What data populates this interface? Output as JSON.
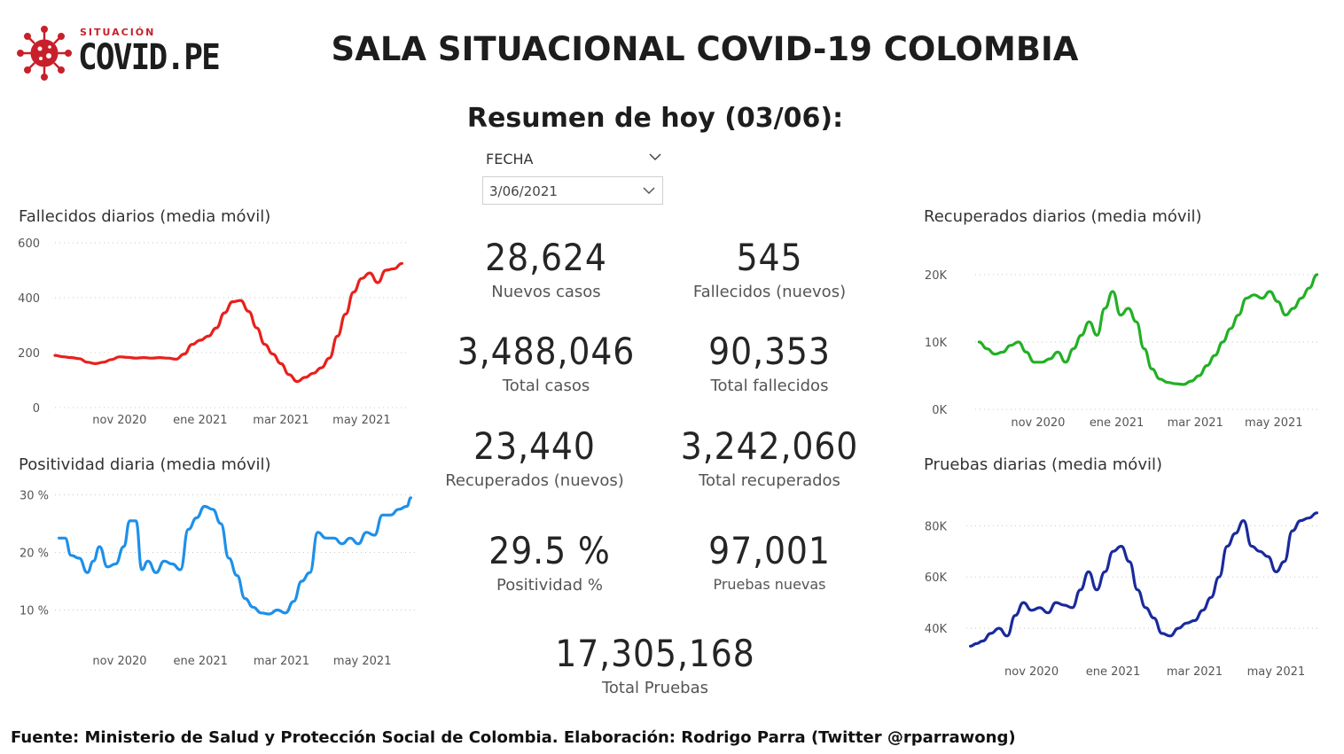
{
  "logo": {
    "small": "SITUACIÓN",
    "big": "COVID.PE",
    "icon": "virus-icon",
    "color": "#c8202a"
  },
  "title": "SALA SITUACIONAL COVID-19 COLOMBIA",
  "subtitle": "Resumen de hoy (03/06):",
  "filter": {
    "label": "FECHA",
    "value": "3/06/2021"
  },
  "kpis": [
    {
      "value": "28,624",
      "label": "Nuevos casos"
    },
    {
      "value": "545",
      "label": "Fallecidos (nuevos)"
    },
    {
      "value": "3,488,046",
      "label": "Total casos"
    },
    {
      "value": "90,353",
      "label": "Total fallecidos"
    },
    {
      "value": "23,440",
      "label": "Recuperados (nuevos)"
    },
    {
      "value": "3,242,060",
      "label": "Total recuperados"
    },
    {
      "value": "29.5 %",
      "label": "Positividad %"
    },
    {
      "value": "97,001",
      "label": "Pruebas nuevas"
    },
    {
      "value": "17,305,168",
      "label": "Total Pruebas"
    }
  ],
  "footer": "Fuente: Ministerio de Salud y Protección Social de Colombia. Elaboración: Rodrigo Parra (Twitter @rparrawong)",
  "chart_data": [
    {
      "type": "line",
      "title": "Fallecidos diarios (media móvil)",
      "color": "#e8201c",
      "xticks": [
        "nov 2020",
        "ene 2021",
        "mar 2021",
        "may 2021"
      ],
      "xtick_pos": [
        1.0,
        3.0,
        5.0,
        7.0
      ],
      "yticks": [
        "600",
        "400",
        "200",
        "0"
      ],
      "ylim": [
        0,
        600
      ],
      "xlim": [
        -0.6,
        8.1
      ],
      "x": [
        -0.6,
        -0.4,
        -0.2,
        0.0,
        0.2,
        0.4,
        0.6,
        0.8,
        1.0,
        1.2,
        1.4,
        1.6,
        1.8,
        2.0,
        2.2,
        2.4,
        2.6,
        2.8,
        3.0,
        3.2,
        3.4,
        3.6,
        3.8,
        4.0,
        4.2,
        4.4,
        4.6,
        4.8,
        5.0,
        5.2,
        5.4,
        5.6,
        5.8,
        6.0,
        6.2,
        6.4,
        6.6,
        6.8,
        7.0,
        7.2,
        7.4,
        7.6,
        7.8,
        8.0
      ],
      "y": [
        190,
        185,
        182,
        178,
        165,
        160,
        165,
        175,
        185,
        183,
        180,
        182,
        180,
        182,
        180,
        176,
        195,
        230,
        245,
        260,
        290,
        345,
        385,
        390,
        350,
        290,
        230,
        195,
        160,
        120,
        95,
        110,
        125,
        145,
        180,
        260,
        340,
        420,
        470,
        490,
        455,
        500,
        505,
        525
      ]
    },
    {
      "type": "line",
      "title": "Positividad diaria (media móvil)",
      "color": "#1e90e8",
      "xticks": [
        "nov 2020",
        "ene 2021",
        "mar 2021",
        "may 2021"
      ],
      "xtick_pos": [
        1.0,
        3.0,
        5.0,
        7.0
      ],
      "yticks": [
        "30 %",
        "20 %",
        "10 %"
      ],
      "ylim": [
        7,
        31
      ],
      "xlim": [
        -0.6,
        8.3
      ],
      "x": [
        -0.5,
        -0.35,
        -0.2,
        0.0,
        0.2,
        0.35,
        0.5,
        0.7,
        0.9,
        1.1,
        1.25,
        1.4,
        1.55,
        1.7,
        1.9,
        2.1,
        2.3,
        2.5,
        2.7,
        2.9,
        3.1,
        3.3,
        3.5,
        3.7,
        3.9,
        4.1,
        4.3,
        4.5,
        4.7,
        4.9,
        5.1,
        5.3,
        5.5,
        5.7,
        5.9,
        6.1,
        6.3,
        6.5,
        6.7,
        6.9,
        7.1,
        7.3,
        7.5,
        7.7,
        7.9,
        8.1,
        8.2
      ],
      "y": [
        22.5,
        22.5,
        19.5,
        19.0,
        16.5,
        18.5,
        21.0,
        17.5,
        18.0,
        21.0,
        25.5,
        25.5,
        17.0,
        18.5,
        16.5,
        18.5,
        18.0,
        17.0,
        24.0,
        26.0,
        28.0,
        27.5,
        25.0,
        19.0,
        16.0,
        12.0,
        10.5,
        9.5,
        9.3,
        10.0,
        9.5,
        11.5,
        15.0,
        16.5,
        23.5,
        22.5,
        22.5,
        21.5,
        22.5,
        21.5,
        23.5,
        23.0,
        26.5,
        26.5,
        27.5,
        28.0,
        29.5
      ]
    },
    {
      "type": "line",
      "title": "Recuperados diarios (media móvil)",
      "color": "#22b024",
      "xticks": [
        "nov 2020",
        "ene 2021",
        "mar 2021",
        "may 2021"
      ],
      "xtick_pos": [
        1.0,
        3.0,
        5.0,
        7.0
      ],
      "yticks": [
        "20K",
        "10K",
        "0K"
      ],
      "ylim": [
        0,
        20000
      ],
      "xlim": [
        -0.6,
        8.2
      ],
      "x": [
        -0.5,
        -0.3,
        -0.1,
        0.1,
        0.3,
        0.5,
        0.7,
        0.9,
        1.1,
        1.3,
        1.5,
        1.7,
        1.9,
        2.1,
        2.3,
        2.5,
        2.7,
        2.9,
        3.1,
        3.3,
        3.5,
        3.7,
        3.9,
        4.1,
        4.3,
        4.5,
        4.7,
        4.9,
        5.1,
        5.3,
        5.5,
        5.7,
        5.9,
        6.1,
        6.3,
        6.5,
        6.7,
        6.9,
        7.1,
        7.3,
        7.5,
        7.7,
        7.9,
        8.1
      ],
      "y": [
        10000,
        9000,
        8200,
        8500,
        9500,
        10000,
        8500,
        7000,
        7000,
        7500,
        8500,
        7000,
        9000,
        11000,
        13000,
        11000,
        15000,
        17500,
        14000,
        15000,
        13000,
        9000,
        6000,
        4500,
        4000,
        3800,
        3700,
        4200,
        5000,
        6500,
        8000,
        10000,
        12000,
        14000,
        16500,
        17000,
        16500,
        17500,
        16000,
        14000,
        15000,
        16500,
        18000,
        20000
      ]
    },
    {
      "type": "line",
      "title": "Pruebas diarias (media móvil)",
      "color": "#1a2a9c",
      "xticks": [
        "nov 2020",
        "ene 2021",
        "mar 2021",
        "may 2021"
      ],
      "xtick_pos": [
        1.0,
        3.0,
        5.0,
        7.0
      ],
      "yticks": [
        "80K",
        "60K",
        "40K"
      ],
      "ylim": [
        30000,
        86000
      ],
      "xlim": [
        -0.6,
        8.1
      ],
      "x": [
        -0.5,
        -0.35,
        -0.2,
        0.0,
        0.2,
        0.4,
        0.6,
        0.8,
        1.0,
        1.2,
        1.4,
        1.6,
        1.8,
        2.0,
        2.2,
        2.4,
        2.6,
        2.8,
        3.0,
        3.2,
        3.4,
        3.6,
        3.8,
        4.0,
        4.2,
        4.4,
        4.6,
        4.8,
        5.0,
        5.2,
        5.4,
        5.6,
        5.8,
        6.0,
        6.2,
        6.4,
        6.6,
        6.8,
        7.0,
        7.2,
        7.4,
        7.6,
        7.8,
        8.0
      ],
      "y": [
        33000,
        34000,
        35000,
        38000,
        40000,
        37000,
        45000,
        50000,
        47000,
        48000,
        46000,
        50000,
        49000,
        48000,
        55000,
        62000,
        55000,
        62000,
        70000,
        72000,
        66000,
        55000,
        48000,
        44000,
        38000,
        37000,
        40000,
        42000,
        43000,
        47000,
        52000,
        60000,
        72000,
        77000,
        82000,
        72000,
        70000,
        68000,
        62000,
        66000,
        78000,
        82000,
        83000,
        85000
      ]
    }
  ]
}
